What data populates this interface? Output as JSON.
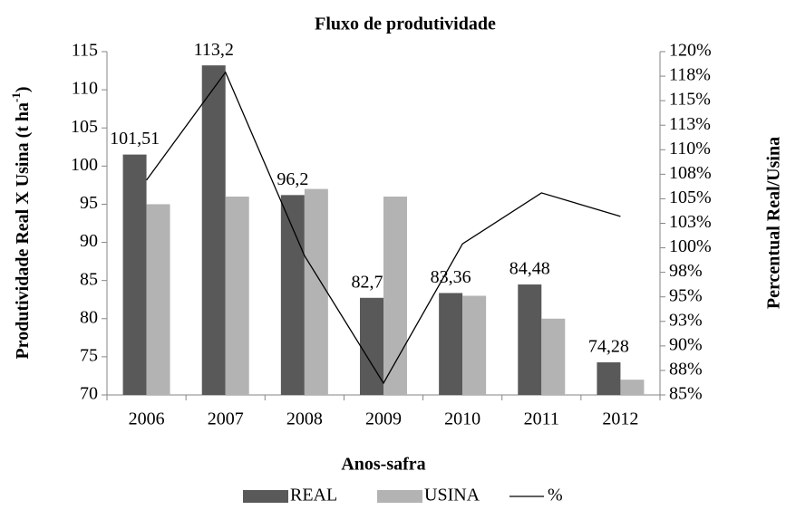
{
  "chart_data": {
    "type": "bar_line",
    "title": "Fluxo de produtividade",
    "x_label": "Anos-safra",
    "y_label": "Produtividade Real X Usina (t ha",
    "y_label_sup": "-1",
    "y_label_end": ")",
    "y2_label": "Percentual Real/Usina",
    "categories": [
      "2006",
      "2007",
      "2008",
      "2009",
      "2010",
      "2011",
      "2012"
    ],
    "series": [
      {
        "name": "REAL",
        "type": "bar",
        "color": "#595959",
        "values": [
          101.51,
          113.2,
          96.2,
          82.73,
          83.36,
          84.48,
          74.28
        ],
        "value_labels": [
          "101,51",
          "113,2",
          "96,2",
          "82,73",
          "83,36",
          "84,48",
          "74,28"
        ]
      },
      {
        "name": "USINA",
        "type": "bar",
        "color": "#b3b3b3",
        "values": [
          95,
          96,
          97,
          96,
          83,
          80,
          72
        ]
      },
      {
        "name": "%",
        "type": "line",
        "axis": "y2",
        "color": "#000000",
        "values": [
          106.9,
          117.9,
          99.2,
          86.2,
          100.4,
          105.6,
          103.2
        ]
      }
    ],
    "ylim": [
      70,
      115
    ],
    "yticks": [
      70,
      75,
      80,
      85,
      90,
      95,
      100,
      105,
      110,
      115
    ],
    "y2lim": [
      85,
      120
    ],
    "y2ticks": [
      {
        "value": 85,
        "label": "85%"
      },
      {
        "value": 87.5,
        "label": "88%"
      },
      {
        "value": 90,
        "label": "90%"
      },
      {
        "value": 92.5,
        "label": "93%"
      },
      {
        "value": 95,
        "label": "95%"
      },
      {
        "value": 97.5,
        "label": "98%"
      },
      {
        "value": 100,
        "label": "100%"
      },
      {
        "value": 102.5,
        "label": "103%"
      },
      {
        "value": 105,
        "label": "105%"
      },
      {
        "value": 107.5,
        "label": "108%"
      },
      {
        "value": 110,
        "label": "110%"
      },
      {
        "value": 112.5,
        "label": "113%"
      },
      {
        "value": 115,
        "label": "115%"
      },
      {
        "value": 117.5,
        "label": "118%"
      },
      {
        "value": 120,
        "label": "120%"
      }
    ],
    "legend": "bottom"
  }
}
